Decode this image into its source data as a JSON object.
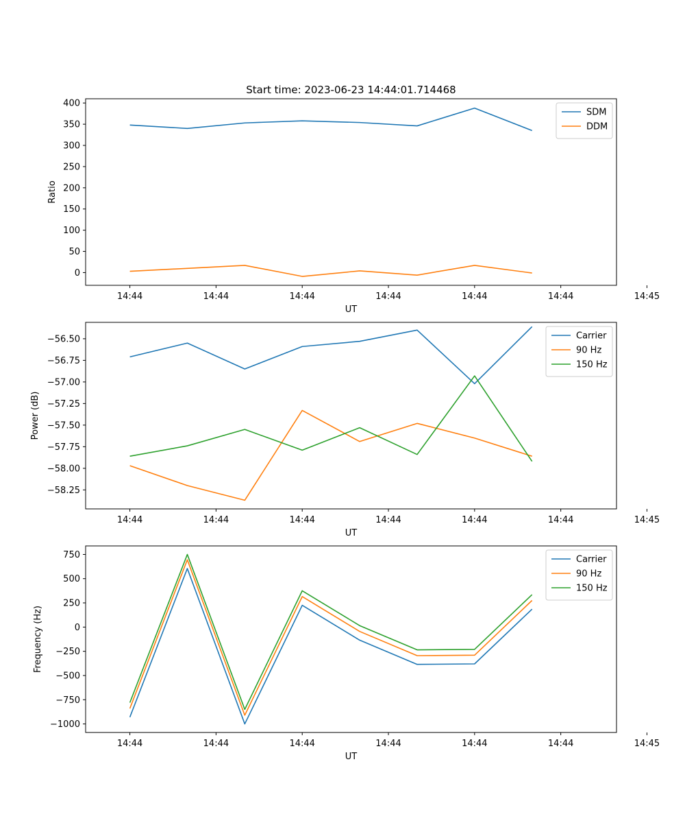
{
  "title": "Start time: 2023-06-23 14:44:01.714468",
  "chart_data": [
    {
      "type": "line",
      "xlabel": "UT",
      "ylabel": "Ratio",
      "x_tick_labels": [
        "14:44",
        "14:44",
        "14:44",
        "14:44",
        "14:44",
        "14:44",
        "14:45"
      ],
      "y_ticks": [
        0,
        50,
        100,
        150,
        200,
        250,
        300,
        350,
        400
      ],
      "ylim": [
        -30,
        410
      ],
      "grid": false,
      "legend": "upper right",
      "series": [
        {
          "name": "SDM",
          "color": "#1f77b4",
          "values": [
            348,
            340,
            353,
            358,
            354,
            346,
            388,
            335
          ]
        },
        {
          "name": "DDM",
          "color": "#ff7f0e",
          "values": [
            3,
            10,
            17,
            -9,
            4,
            -6,
            17,
            -1
          ]
        }
      ]
    },
    {
      "type": "line",
      "xlabel": "UT",
      "ylabel": "Power (dB)",
      "x_tick_labels": [
        "14:44",
        "14:44",
        "14:44",
        "14:44",
        "14:44",
        "14:44",
        "14:45"
      ],
      "y_ticks": [
        -58.25,
        -58.0,
        -57.75,
        -57.5,
        -57.25,
        -57.0,
        -56.75,
        -56.5
      ],
      "y_tick_labels": [
        "−58.25",
        "−58.00",
        "−57.75",
        "−57.50",
        "−57.25",
        "−57.00",
        "−56.75",
        "−56.50"
      ],
      "ylim": [
        -58.47,
        -56.31
      ],
      "grid": false,
      "legend": "upper right",
      "series": [
        {
          "name": "Carrier",
          "color": "#1f77b4",
          "values": [
            -56.71,
            -56.55,
            -56.85,
            -56.59,
            -56.53,
            -56.4,
            -57.02,
            -56.36
          ]
        },
        {
          "name": "90 Hz",
          "color": "#ff7f0e",
          "values": [
            -57.97,
            -58.2,
            -58.37,
            -57.33,
            -57.69,
            -57.48,
            -57.65,
            -57.86
          ]
        },
        {
          "name": "150 Hz",
          "color": "#2ca02c",
          "values": [
            -57.86,
            -57.74,
            -57.55,
            -57.79,
            -57.53,
            -57.84,
            -56.93,
            -57.92
          ]
        }
      ]
    },
    {
      "type": "line",
      "xlabel": "UT",
      "ylabel": "Frequency (Hz)",
      "x_tick_labels": [
        "14:44",
        "14:44",
        "14:44",
        "14:44",
        "14:44",
        "14:44",
        "14:45"
      ],
      "y_ticks": [
        -1000,
        -750,
        -500,
        -250,
        0,
        250,
        500,
        750
      ],
      "y_tick_labels": [
        "−1000",
        "−750",
        "−500",
        "−250",
        "0",
        "250",
        "500",
        "750"
      ],
      "ylim": [
        -1088,
        838
      ],
      "grid": false,
      "legend": "upper right",
      "series": [
        {
          "name": "Carrier",
          "color": "#1f77b4",
          "values": [
            -930,
            605,
            -1000,
            225,
            -135,
            -385,
            -380,
            185
          ]
        },
        {
          "name": "90 Hz",
          "color": "#ff7f0e",
          "values": [
            -840,
            695,
            -910,
            315,
            -45,
            -295,
            -290,
            275
          ]
        },
        {
          "name": "150 Hz",
          "color": "#2ca02c",
          "values": [
            -780,
            750,
            -850,
            375,
            15,
            -235,
            -230,
            335
          ]
        }
      ]
    }
  ]
}
